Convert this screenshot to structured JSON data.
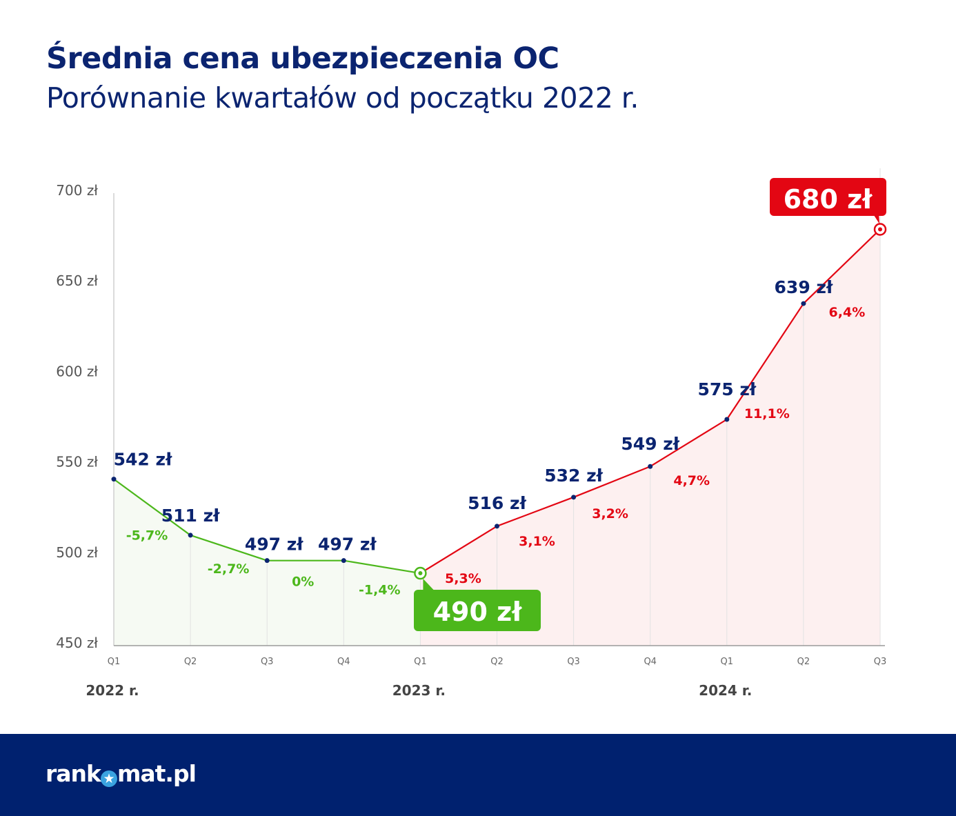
{
  "title": "Średnia cena ubezpieczenia OC",
  "subtitle": "Porównanie kwartałów od początku 2022 r.",
  "logo": {
    "text_before": "rank",
    "text_after": "mat.pl",
    "star_icon": "star-icon"
  },
  "colors": {
    "navy": "#0b2470",
    "green": "#4cb71b",
    "red": "#e30613",
    "footer": "#00216f"
  },
  "chart_data": {
    "type": "line",
    "title": "Średnia cena ubezpieczenia OC",
    "ylim": [
      450,
      700
    ],
    "yticks": [
      "450 zł",
      "500 zł",
      "550 zł",
      "600 zł",
      "650 zł",
      "700 zł"
    ],
    "ytick_values": [
      450,
      500,
      550,
      600,
      650,
      700
    ],
    "categories": [
      "Q1",
      "Q2",
      "Q3",
      "Q4",
      "Q1",
      "Q2",
      "Q3",
      "Q4",
      "Q1",
      "Q2",
      "Q3"
    ],
    "year_labels": [
      {
        "label": "2022 r.",
        "index": 0
      },
      {
        "label": "2023 r.",
        "index": 4
      },
      {
        "label": "2024 r.",
        "index": 8
      }
    ],
    "values": [
      542,
      511,
      497,
      497,
      490,
      516,
      532,
      549,
      575,
      639,
      680
    ],
    "value_labels": [
      "542 zł",
      "511 zł",
      "497 zł",
      "497 zł",
      "490 zł",
      "516 zł",
      "532 zł",
      "549 zł",
      "575 zł",
      "639 zł",
      "680 zł"
    ],
    "change_labels": [
      "-5,7%",
      "-2,7%",
      "0%",
      "-1,4%",
      "5,3%",
      "3,1%",
      "3,2%",
      "4,7%",
      "11,1%",
      "6,4%"
    ],
    "grid": false,
    "highlight": {
      "min_index": 4,
      "max_index": 10
    }
  }
}
